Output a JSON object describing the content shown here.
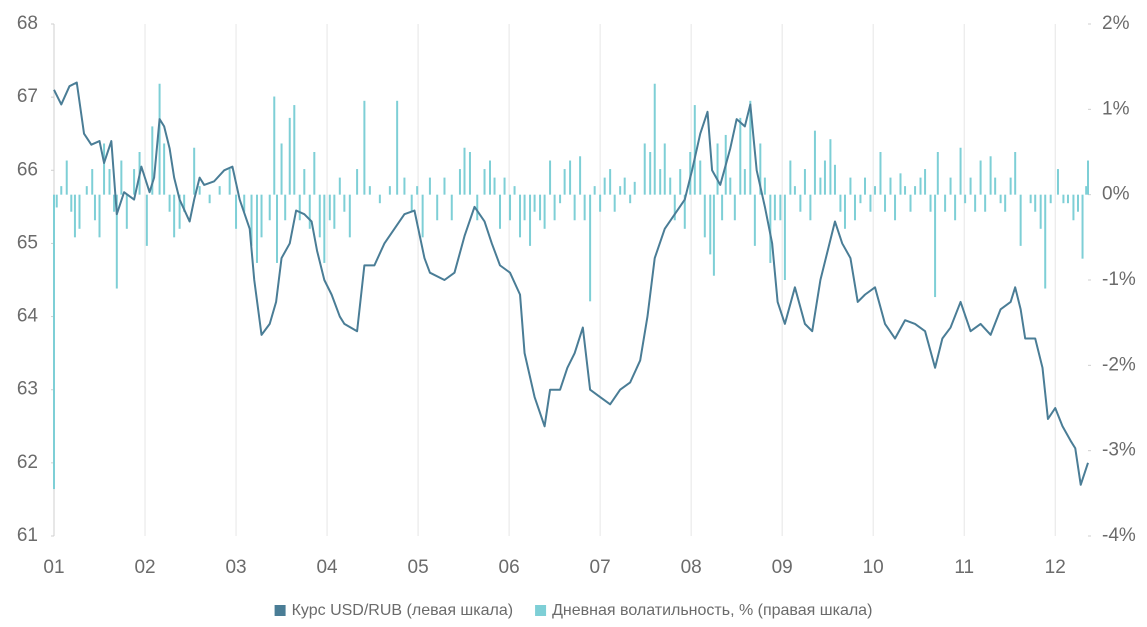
{
  "chart_data": {
    "type": "combo",
    "xlim": [
      1,
      12.36
    ],
    "xticks": [
      {
        "value": 1,
        "label": "01"
      },
      {
        "value": 2,
        "label": "02"
      },
      {
        "value": 3,
        "label": "03"
      },
      {
        "value": 4,
        "label": "04"
      },
      {
        "value": 5,
        "label": "05"
      },
      {
        "value": 6,
        "label": "06"
      },
      {
        "value": 7,
        "label": "07"
      },
      {
        "value": 8,
        "label": "08"
      },
      {
        "value": 9,
        "label": "09"
      },
      {
        "value": 10,
        "label": "10"
      },
      {
        "value": 11,
        "label": "11"
      },
      {
        "value": 12,
        "label": "12"
      }
    ],
    "ylim": [
      61,
      68
    ],
    "yticks": [
      61,
      62,
      63,
      64,
      65,
      66,
      67,
      68
    ],
    "y2lim": [
      -4,
      2
    ],
    "y2ticks": [
      {
        "value": -4,
        "label": "-4%"
      },
      {
        "value": -3,
        "label": "-3%"
      },
      {
        "value": -2,
        "label": "-2%"
      },
      {
        "value": -1,
        "label": "-1%"
      },
      {
        "value": 0,
        "label": "0%"
      },
      {
        "value": 1,
        "label": "1%"
      },
      {
        "value": 2,
        "label": "2%"
      }
    ],
    "grid": true,
    "legend": "bottom",
    "series": [
      {
        "name": "Дневная волатильность, % (правая шкала)",
        "type": "bar",
        "axis": "y2",
        "color": "#7ecfd6",
        "x": [
          1.0,
          1.03,
          1.08,
          1.14,
          1.19,
          1.23,
          1.28,
          1.36,
          1.42,
          1.45,
          1.5,
          1.55,
          1.61,
          1.66,
          1.69,
          1.74,
          1.8,
          1.88,
          1.94,
          2.02,
          2.08,
          2.16,
          2.21,
          2.27,
          2.32,
          2.38,
          2.43,
          2.54,
          2.6,
          2.71,
          2.82,
          2.93,
          3.0,
          3.09,
          3.17,
          3.23,
          3.28,
          3.37,
          3.42,
          3.45,
          3.5,
          3.54,
          3.59,
          3.64,
          3.7,
          3.75,
          3.81,
          3.86,
          3.92,
          3.97,
          4.03,
          4.08,
          4.14,
          4.19,
          4.25,
          4.33,
          4.41,
          4.47,
          4.58,
          4.69,
          4.77,
          4.85,
          4.93,
          4.99,
          5.05,
          5.13,
          5.21,
          5.29,
          5.37,
          5.46,
          5.51,
          5.57,
          5.65,
          5.73,
          5.79,
          5.84,
          5.9,
          5.95,
          6.01,
          6.06,
          6.12,
          6.17,
          6.23,
          6.28,
          6.34,
          6.39,
          6.45,
          6.5,
          6.56,
          6.61,
          6.67,
          6.72,
          6.78,
          6.83,
          6.89,
          6.94,
          7.0,
          7.05,
          7.11,
          7.16,
          7.22,
          7.27,
          7.33,
          7.38,
          7.49,
          7.55,
          7.6,
          7.66,
          7.71,
          7.77,
          7.82,
          7.88,
          7.93,
          7.99,
          8.04,
          8.1,
          8.15,
          8.21,
          8.25,
          8.29,
          8.34,
          8.38,
          8.43,
          8.48,
          8.54,
          8.59,
          8.65,
          8.7,
          8.76,
          8.81,
          8.87,
          8.92,
          8.98,
          9.03,
          9.09,
          9.14,
          9.2,
          9.25,
          9.31,
          9.36,
          9.42,
          9.47,
          9.53,
          9.58,
          9.64,
          9.69,
          9.75,
          9.8,
          9.86,
          9.91,
          9.97,
          10.02,
          10.08,
          10.13,
          10.19,
          10.24,
          10.3,
          10.35,
          10.41,
          10.46,
          10.52,
          10.57,
          10.63,
          10.68,
          10.71,
          10.79,
          10.85,
          10.9,
          10.96,
          11.01,
          11.07,
          11.12,
          11.18,
          11.23,
          11.29,
          11.34,
          11.4,
          11.45,
          11.51,
          11.56,
          11.62,
          11.73,
          11.78,
          11.84,
          11.89,
          11.95,
          12.03,
          12.09,
          12.14,
          12.2,
          12.25,
          12.3,
          12.34,
          12.36
        ],
        "values": [
          -3.45,
          -0.15,
          0.1,
          0.4,
          -0.2,
          -0.5,
          -0.4,
          0.1,
          0.3,
          -0.3,
          -0.5,
          0.6,
          0.3,
          -0.2,
          -1.1,
          0.4,
          -0.4,
          0.3,
          0.5,
          -0.6,
          0.8,
          1.3,
          0.6,
          -0.2,
          -0.5,
          -0.4,
          -0.2,
          0.55,
          0.1,
          -0.1,
          0.1,
          0.3,
          -0.4,
          -0.2,
          -0.6,
          -0.8,
          -0.5,
          -0.3,
          1.15,
          -0.8,
          0.6,
          -0.3,
          0.9,
          1.05,
          -0.3,
          0.3,
          -0.4,
          0.5,
          -0.5,
          -0.8,
          -0.3,
          -0.4,
          0.2,
          -0.2,
          -0.5,
          0.3,
          1.1,
          0.1,
          -0.1,
          0.1,
          1.1,
          0.2,
          -0.2,
          0.1,
          -0.5,
          0.2,
          -0.3,
          0.2,
          -0.3,
          0.3,
          0.55,
          0.5,
          -0.3,
          0.3,
          0.4,
          0.2,
          -0.4,
          0.2,
          -0.3,
          0.1,
          -0.5,
          -0.3,
          -0.6,
          -0.2,
          -0.3,
          -0.4,
          0.4,
          -0.3,
          -0.1,
          0.3,
          0.4,
          -0.3,
          0.45,
          -0.3,
          -1.25,
          0.1,
          -0.2,
          0.2,
          0.3,
          -0.2,
          0.1,
          0.2,
          -0.1,
          0.15,
          0.6,
          0.5,
          1.3,
          0.3,
          0.6,
          0.2,
          -0.3,
          0.3,
          -0.4,
          0.5,
          1.05,
          0.4,
          -0.5,
          -0.7,
          -0.95,
          0.6,
          -0.3,
          0.7,
          0.2,
          -0.3,
          0.9,
          0.3,
          1.1,
          -0.6,
          0.6,
          0.2,
          -0.8,
          -0.3,
          -0.3,
          -1.0,
          0.4,
          0.1,
          -0.2,
          0.3,
          -0.3,
          0.75,
          0.2,
          0.4,
          0.65,
          0.35,
          -0.2,
          -0.4,
          0.2,
          -0.3,
          -0.1,
          0.2,
          -0.2,
          0.1,
          0.5,
          -0.2,
          0.2,
          -0.3,
          0.25,
          0.1,
          -0.2,
          0.1,
          0.2,
          0.3,
          -0.2,
          -1.2,
          0.5,
          -0.2,
          0.2,
          -0.3,
          0.55,
          -0.1,
          0.2,
          -0.2,
          0.4,
          -0.2,
          0.45,
          0.2,
          -0.1,
          -0.2,
          0.2,
          0.5,
          -0.6,
          -0.1,
          -0.2,
          -0.4,
          -1.1,
          -0.1,
          0.3,
          -0.1,
          -0.1,
          -0.3,
          -0.2,
          -0.75,
          0.1,
          0.4
        ]
      },
      {
        "name": "Курс USD/RUB (левая шкала)",
        "type": "line",
        "color": "#4a7d96",
        "x": [
          1.0,
          1.08,
          1.17,
          1.25,
          1.33,
          1.41,
          1.5,
          1.55,
          1.63,
          1.69,
          1.77,
          1.88,
          1.96,
          2.05,
          2.1,
          2.16,
          2.21,
          2.27,
          2.32,
          2.38,
          2.49,
          2.54,
          2.6,
          2.65,
          2.76,
          2.87,
          2.96,
          3.04,
          3.15,
          3.2,
          3.28,
          3.37,
          3.44,
          3.5,
          3.59,
          3.66,
          3.75,
          3.83,
          3.89,
          3.97,
          4.05,
          4.14,
          4.19,
          4.33,
          4.41,
          4.52,
          4.63,
          4.74,
          4.85,
          4.96,
          5.07,
          5.13,
          5.29,
          5.4,
          5.51,
          5.62,
          5.73,
          5.81,
          5.9,
          6.01,
          6.12,
          6.17,
          6.28,
          6.39,
          6.45,
          6.56,
          6.64,
          6.72,
          6.81,
          6.89,
          7.0,
          7.11,
          7.22,
          7.33,
          7.44,
          7.52,
          7.6,
          7.71,
          7.82,
          7.93,
          8.01,
          8.1,
          8.18,
          8.23,
          8.32,
          8.43,
          8.5,
          8.59,
          8.65,
          8.72,
          8.81,
          8.89,
          8.95,
          9.03,
          9.14,
          9.25,
          9.33,
          9.42,
          9.5,
          9.58,
          9.66,
          9.75,
          9.83,
          9.91,
          10.02,
          10.13,
          10.24,
          10.35,
          10.46,
          10.57,
          10.68,
          10.76,
          10.85,
          10.96,
          11.07,
          11.18,
          11.29,
          11.4,
          11.51,
          11.56,
          11.62,
          11.67,
          11.78,
          11.86,
          11.92,
          12.0,
          12.08,
          12.17,
          12.22,
          12.28,
          12.36
        ],
        "values": [
          67.1,
          66.9,
          67.15,
          67.2,
          66.5,
          66.35,
          66.4,
          66.1,
          66.4,
          65.4,
          65.7,
          65.6,
          66.05,
          65.7,
          65.9,
          66.7,
          66.6,
          66.3,
          65.9,
          65.6,
          65.3,
          65.6,
          65.9,
          65.8,
          65.85,
          66.0,
          66.05,
          65.6,
          65.2,
          64.5,
          63.75,
          63.9,
          64.2,
          64.8,
          65.0,
          65.45,
          65.4,
          65.3,
          64.9,
          64.5,
          64.3,
          64.0,
          63.9,
          63.8,
          64.7,
          64.7,
          65.0,
          65.2,
          65.4,
          65.45,
          64.8,
          64.6,
          64.5,
          64.6,
          65.1,
          65.5,
          65.3,
          65.0,
          64.7,
          64.6,
          64.3,
          63.5,
          62.9,
          62.5,
          63.0,
          63.0,
          63.3,
          63.5,
          63.85,
          63.0,
          62.9,
          62.8,
          63.0,
          63.1,
          63.4,
          64.0,
          64.8,
          65.2,
          65.4,
          65.6,
          66.0,
          66.5,
          66.8,
          66.0,
          65.8,
          66.3,
          66.7,
          66.6,
          66.9,
          66.0,
          65.5,
          65.0,
          64.2,
          63.9,
          64.4,
          63.9,
          63.8,
          64.5,
          64.9,
          65.3,
          65.0,
          64.8,
          64.2,
          64.3,
          64.4,
          63.9,
          63.7,
          63.95,
          63.9,
          63.8,
          63.3,
          63.7,
          63.85,
          64.2,
          63.8,
          63.9,
          63.75,
          64.1,
          64.2,
          64.4,
          64.1,
          63.7,
          63.7,
          63.3,
          62.6,
          62.75,
          62.5,
          62.3,
          62.2,
          61.7,
          62.0
        ]
      }
    ]
  }
}
